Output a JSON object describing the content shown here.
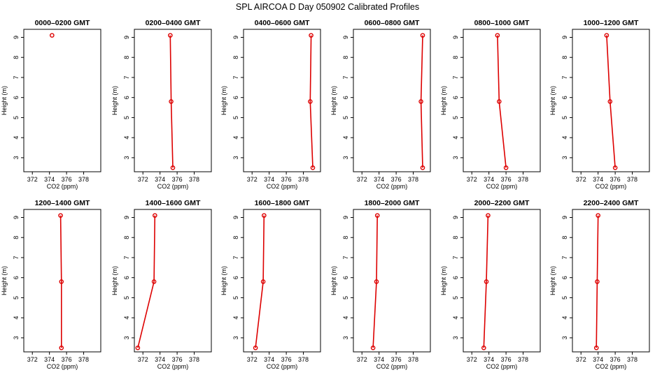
{
  "figure_title": "SPL AIRCOA D  Day 050902  Calibrated Profiles",
  "colors": {
    "series": "#dd0000",
    "frame": "#000000"
  },
  "chart_data": {
    "type": "line",
    "layout": "2x6 small multiples",
    "xlabel": "CO2 (ppm)",
    "ylabel": "Height (m)",
    "xlim": [
      371,
      380
    ],
    "ylim": [
      2.3,
      9.4
    ],
    "xticks": [
      372,
      374,
      376,
      378
    ],
    "yticks": [
      3,
      4,
      5,
      6,
      7,
      8,
      9
    ],
    "grid": false,
    "panels": [
      {
        "title": "0000–0200 GMT",
        "points": [
          {
            "x": 374.3,
            "y": 9.1
          }
        ]
      },
      {
        "title": "0200–0400 GMT",
        "points": [
          {
            "x": 375.2,
            "y": 9.1
          },
          {
            "x": 375.3,
            "y": 5.8
          },
          {
            "x": 375.5,
            "y": 2.5
          }
        ]
      },
      {
        "title": "0400–0600 GMT",
        "points": [
          {
            "x": 378.9,
            "y": 9.1
          },
          {
            "x": 378.8,
            "y": 5.8
          },
          {
            "x": 379.1,
            "y": 2.5
          }
        ]
      },
      {
        "title": "0600–0800 GMT",
        "points": [
          {
            "x": 379.1,
            "y": 9.1
          },
          {
            "x": 378.9,
            "y": 5.8
          },
          {
            "x": 379.1,
            "y": 2.5
          }
        ]
      },
      {
        "title": "0800–1000 GMT",
        "points": [
          {
            "x": 375.0,
            "y": 9.1
          },
          {
            "x": 375.2,
            "y": 5.8
          },
          {
            "x": 376.0,
            "y": 2.5
          }
        ]
      },
      {
        "title": "1000–1200 GMT",
        "points": [
          {
            "x": 375.0,
            "y": 9.1
          },
          {
            "x": 375.4,
            "y": 5.8
          },
          {
            "x": 376.0,
            "y": 2.5
          }
        ]
      },
      {
        "title": "1200–1400 GMT",
        "points": [
          {
            "x": 375.3,
            "y": 9.1
          },
          {
            "x": 375.4,
            "y": 5.8
          },
          {
            "x": 375.4,
            "y": 2.5
          }
        ]
      },
      {
        "title": "1400–1600 GMT",
        "points": [
          {
            "x": 373.4,
            "y": 9.1
          },
          {
            "x": 373.3,
            "y": 5.8
          },
          {
            "x": 371.4,
            "y": 2.5
          }
        ]
      },
      {
        "title": "1600–1800 GMT",
        "points": [
          {
            "x": 373.4,
            "y": 9.1
          },
          {
            "x": 373.3,
            "y": 5.8
          },
          {
            "x": 372.4,
            "y": 2.5
          }
        ]
      },
      {
        "title": "1800–2000 GMT",
        "points": [
          {
            "x": 373.8,
            "y": 9.1
          },
          {
            "x": 373.7,
            "y": 5.8
          },
          {
            "x": 373.3,
            "y": 2.5
          }
        ]
      },
      {
        "title": "2000–2200 GMT",
        "points": [
          {
            "x": 373.9,
            "y": 9.1
          },
          {
            "x": 373.7,
            "y": 5.8
          },
          {
            "x": 373.4,
            "y": 2.5
          }
        ]
      },
      {
        "title": "2200–2400 GMT",
        "points": [
          {
            "x": 374.0,
            "y": 9.1
          },
          {
            "x": 373.9,
            "y": 5.8
          },
          {
            "x": 373.8,
            "y": 2.5
          }
        ]
      }
    ]
  }
}
